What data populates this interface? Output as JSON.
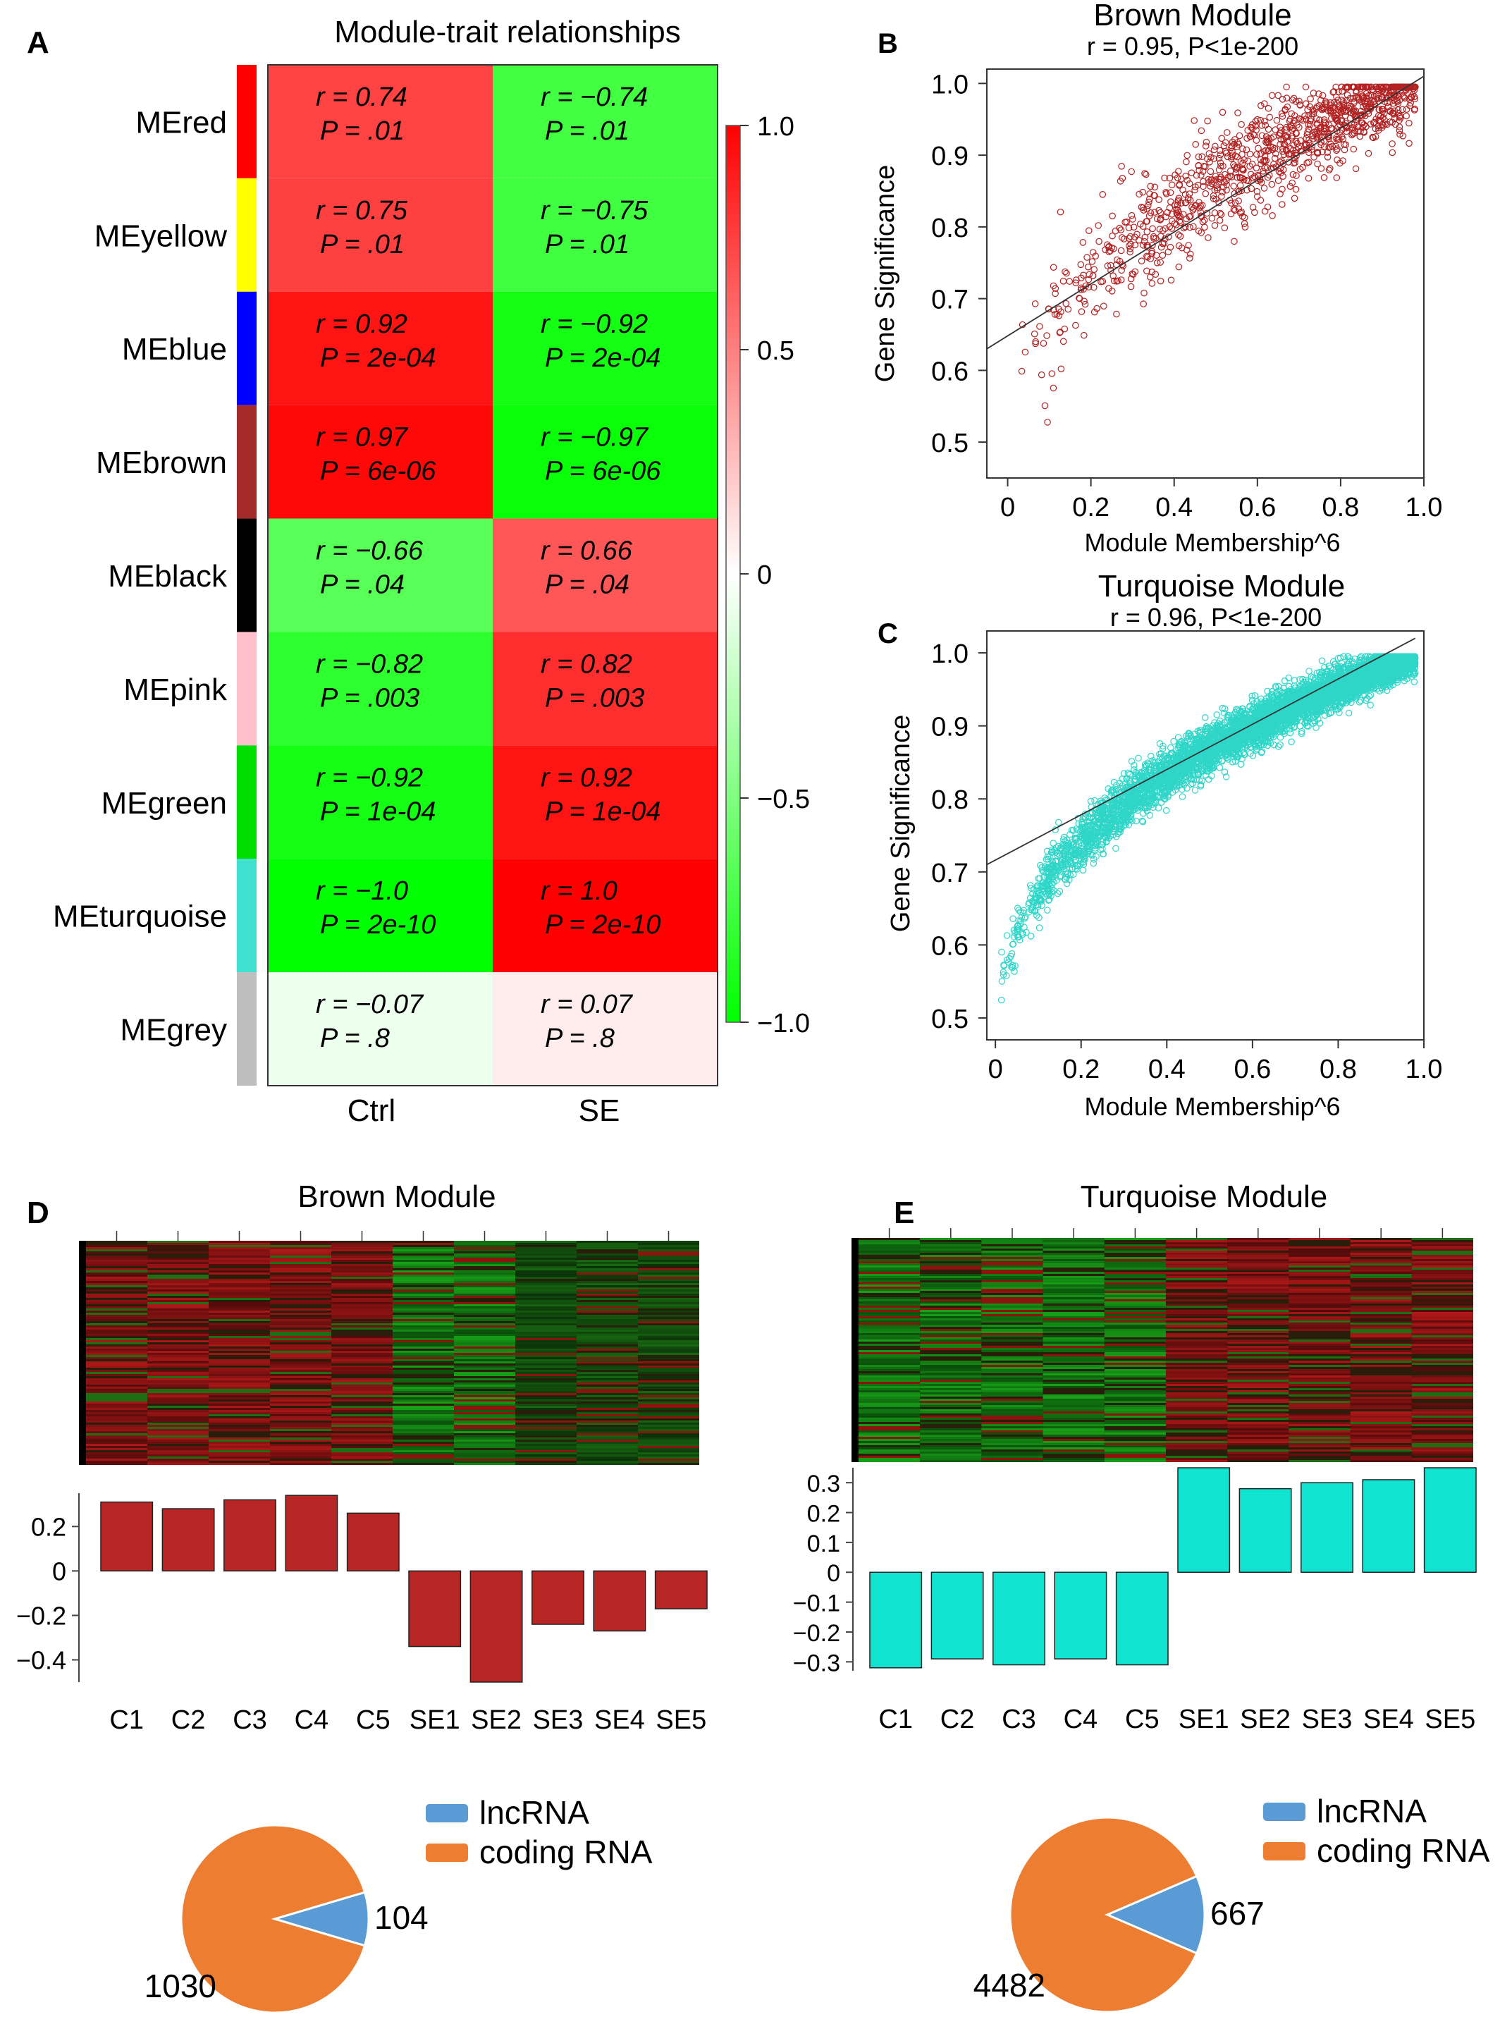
{
  "panels": {
    "a": "A",
    "b": "B",
    "c": "C",
    "d": "D",
    "e": "E"
  },
  "colors": {
    "red": "#ff0000",
    "green": "#00ff00",
    "white": "#ffffff",
    "brown_points": "#b22222",
    "turquoise_points": "#2fd6c8",
    "brown_bars": "#b82525",
    "turquoise_bars": "#10e3cf",
    "lncRNA": "#5b9bd5",
    "coding": "#ed7d31"
  },
  "chart_data": [
    {
      "id": "A",
      "type": "heatmap",
      "title": "Module-trait relationships",
      "columns": [
        "Ctrl",
        "SE"
      ],
      "rows": [
        {
          "name": "MEred",
          "color": "#ff0000",
          "r": [
            0.74,
            -0.74
          ],
          "r_text": [
            "r = 0.74",
            "r = −0.74"
          ],
          "p_text": [
            "P = .01",
            "P = .01"
          ]
        },
        {
          "name": "MEyellow",
          "color": "#ffff00",
          "r": [
            0.75,
            -0.75
          ],
          "r_text": [
            "r = 0.75",
            "r = −0.75"
          ],
          "p_text": [
            "P = .01",
            "P = .01"
          ]
        },
        {
          "name": "MEblue",
          "color": "#0000ff",
          "r": [
            0.92,
            -0.92
          ],
          "r_text": [
            "r = 0.92",
            "r = −0.92"
          ],
          "p_text": [
            "P = 2e-04",
            "P = 2e-04"
          ]
        },
        {
          "name": "MEbrown",
          "color": "#a52a2a",
          "r": [
            0.97,
            -0.97
          ],
          "r_text": [
            "r = 0.97",
            "r = −0.97"
          ],
          "p_text": [
            "P = 6e-06",
            "P = 6e-06"
          ]
        },
        {
          "name": "MEblack",
          "color": "#000000",
          "r": [
            -0.66,
            0.66
          ],
          "r_text": [
            "r = −0.66",
            "r = 0.66"
          ],
          "p_text": [
            "P = .04",
            "P = .04"
          ]
        },
        {
          "name": "MEpink",
          "color": "#ffc0cb",
          "r": [
            -0.82,
            0.82
          ],
          "r_text": [
            "r = −0.82",
            "r = 0.82"
          ],
          "p_text": [
            "P = .003",
            "P = .003"
          ]
        },
        {
          "name": "MEgreen",
          "color": "#00dd00",
          "r": [
            -0.92,
            0.92
          ],
          "r_text": [
            "r = −0.92",
            "r = 0.92"
          ],
          "p_text": [
            "P = 1e-04",
            "P = 1e-04"
          ]
        },
        {
          "name": "MEturquoise",
          "color": "#40e0d0",
          "r": [
            -1.0,
            1.0
          ],
          "r_text": [
            "r = −1.0",
            "r = 1.0"
          ],
          "p_text": [
            "P = 2e-10",
            "P = 2e-10"
          ]
        },
        {
          "name": "MEgrey",
          "color": "#bebebe",
          "r": [
            -0.07,
            0.07
          ],
          "r_text": [
            "r = −0.07",
            "r = 0.07"
          ],
          "p_text": [
            "P = .8",
            "P = .8"
          ]
        }
      ],
      "colorbar": {
        "range": [
          -1.0,
          1.0
        ],
        "ticks": [
          "1.0",
          "0.5",
          "0",
          "−0.5",
          "−1.0"
        ]
      }
    },
    {
      "id": "B",
      "type": "scatter",
      "title": "Brown Module",
      "subtitle": "r = 0.95, P<1e-200",
      "xlabel": "Module Membership^6",
      "ylabel": "Gene Significance",
      "xlim": [
        -0.05,
        1.0
      ],
      "ylim": [
        0.45,
        1.02
      ],
      "xticks": [
        "0",
        "0.2",
        "0.4",
        "0.6",
        "0.8",
        "1.0"
      ],
      "yticks": [
        "0.5",
        "0.6",
        "0.7",
        "0.8",
        "0.9",
        "1.0"
      ],
      "fit_line": [
        [
          -0.05,
          0.63
        ],
        [
          1.0,
          1.01
        ]
      ],
      "n_points": 1134,
      "point_trend": "y ≈ 0.47 + 0.54·x^0.45, dense cluster near x 0.7–1.0, y 0.9–1.0"
    },
    {
      "id": "C",
      "type": "scatter",
      "title": "Turquoise Module",
      "subtitle": "r = 0.96, P<1e-200",
      "xlabel": "Module Membership^6",
      "ylabel": "Gene Significance",
      "xlim": [
        -0.02,
        1.0
      ],
      "ylim": [
        0.47,
        1.03
      ],
      "xticks": [
        "0",
        "0.2",
        "0.4",
        "0.6",
        "0.8",
        "1.0"
      ],
      "yticks": [
        "0.5",
        "0.6",
        "0.7",
        "0.8",
        "0.9",
        "1.0"
      ],
      "fit_line": [
        [
          -0.02,
          0.71
        ],
        [
          0.98,
          1.02
        ]
      ],
      "n_points": 5149,
      "point_trend": "y ≈ 0.45 + 0.55·x^0.4, tight band rising steeply from x 0 to 0.2"
    },
    {
      "id": "D",
      "type": "bar",
      "title": "Brown Module",
      "categories": [
        "C1",
        "C2",
        "C3",
        "C4",
        "C5",
        "SE1",
        "SE2",
        "SE3",
        "SE4",
        "SE5"
      ],
      "values": [
        0.31,
        0.28,
        0.32,
        0.34,
        0.26,
        -0.34,
        -0.5,
        -0.24,
        -0.27,
        -0.17
      ],
      "ylim": [
        -0.5,
        0.35
      ],
      "yticks": [
        {
          "v": 0.2,
          "t": "0.2"
        },
        {
          "v": 0,
          "t": "0"
        },
        {
          "v": -0.2,
          "t": "−0.2"
        },
        {
          "v": -0.4,
          "t": "−0.4"
        }
      ],
      "heatmap_pattern": [
        "red",
        "red",
        "red",
        "red",
        "red",
        "green",
        "green",
        "darkgreen",
        "darkgreen",
        "darkgreen"
      ],
      "pie": {
        "labels": [
          "lncRNA",
          "coding RNA"
        ],
        "values": [
          104,
          1030
        ]
      }
    },
    {
      "id": "E",
      "type": "bar",
      "title": "Turquoise Module",
      "categories": [
        "C1",
        "C2",
        "C3",
        "C4",
        "C5",
        "SE1",
        "SE2",
        "SE3",
        "SE4",
        "SE5"
      ],
      "values": [
        -0.32,
        -0.29,
        -0.31,
        -0.29,
        -0.31,
        0.35,
        0.28,
        0.3,
        0.31,
        0.35
      ],
      "ylim": [
        -0.33,
        0.35
      ],
      "yticks": [
        {
          "v": 0.3,
          "t": "0.3"
        },
        {
          "v": 0.2,
          "t": "0.2"
        },
        {
          "v": 0.1,
          "t": "0.1"
        },
        {
          "v": 0,
          "t": "0"
        },
        {
          "v": -0.1,
          "t": "−0.1"
        },
        {
          "v": -0.2,
          "t": "−0.2"
        },
        {
          "v": -0.3,
          "t": "−0.3"
        }
      ],
      "heatmap_pattern": [
        "green",
        "green",
        "green",
        "green",
        "green",
        "red",
        "red",
        "red",
        "red",
        "red"
      ],
      "pie": {
        "labels": [
          "lncRNA",
          "coding RNA"
        ],
        "values": [
          667,
          4482
        ]
      }
    }
  ]
}
